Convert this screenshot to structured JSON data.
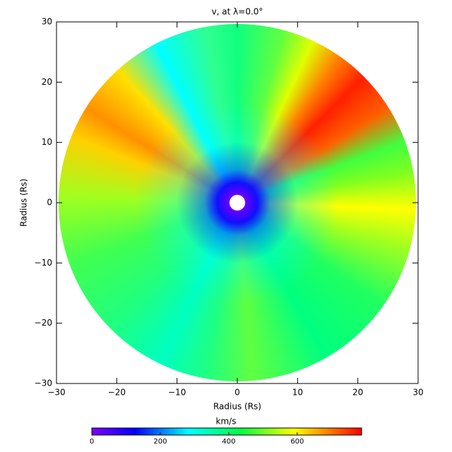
{
  "chart_data": {
    "type": "polar-heatmap",
    "title": "v, at λ=0.0°",
    "xlabel": "Radius (Rs)",
    "ylabel": "Radius (Rs)",
    "xlim": [
      -30,
      30
    ],
    "ylim": [
      -30,
      30
    ],
    "xticks": [
      {
        "value": -30,
        "label": "−30"
      },
      {
        "value": -20,
        "label": "−20"
      },
      {
        "value": -10,
        "label": "−10"
      },
      0,
      10,
      20,
      30
    ],
    "yticks": [
      {
        "value": -30,
        "label": "−30"
      },
      {
        "value": -20,
        "label": "−20"
      },
      {
        "value": -10,
        "label": "−10"
      },
      0,
      10,
      20,
      30
    ],
    "colorbar": {
      "label": "km/s",
      "lim": [
        0,
        788
      ],
      "ticks": [
        0,
        200,
        400,
        600
      ]
    }
  }
}
